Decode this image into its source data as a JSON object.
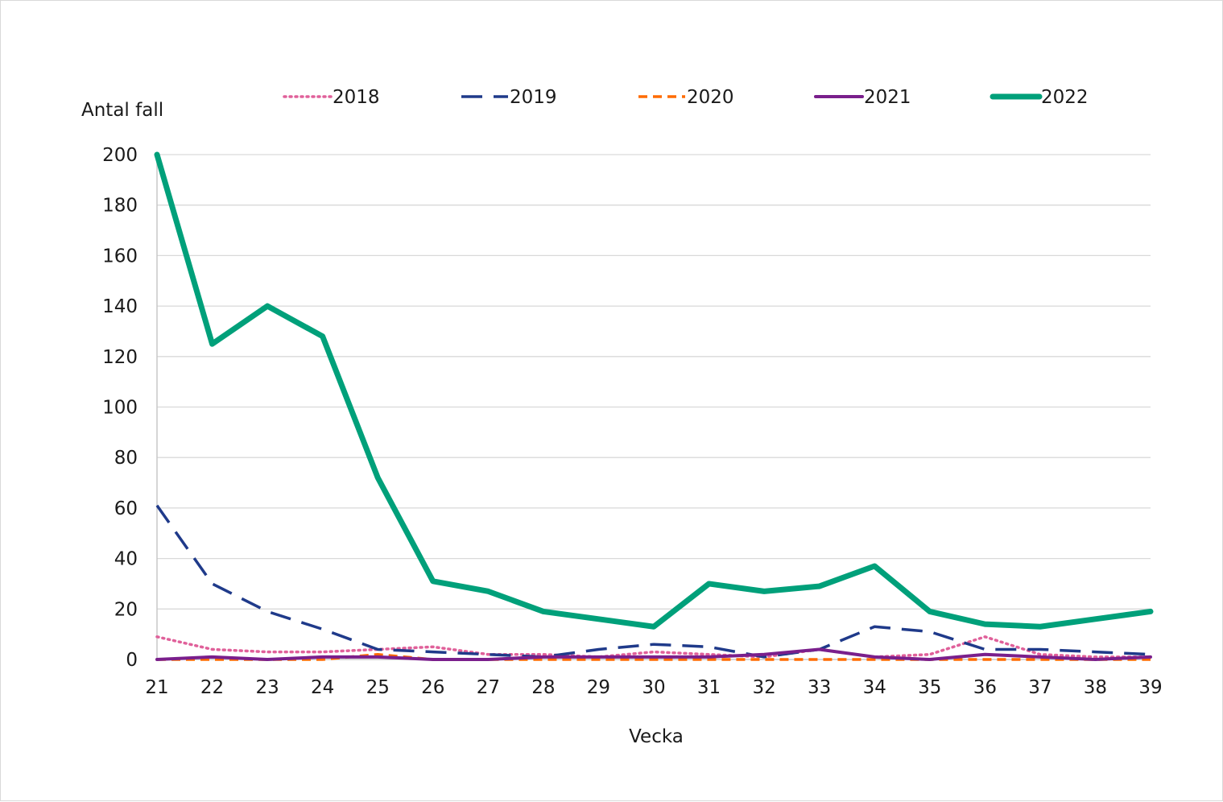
{
  "chart_data": {
    "type": "line",
    "title": "",
    "ylabel": "Antal fall",
    "xlabel": "Vecka",
    "ylim": [
      0,
      200
    ],
    "yticks": [
      0,
      20,
      40,
      60,
      80,
      100,
      120,
      140,
      160,
      180,
      200
    ],
    "grid": "horizontal",
    "legend_position": "top",
    "x": [
      21,
      22,
      23,
      24,
      25,
      26,
      27,
      28,
      29,
      30,
      31,
      32,
      33,
      34,
      35,
      36,
      37,
      38,
      39
    ],
    "series": [
      {
        "name": "2018",
        "color": "#e0609a",
        "style": "dotted",
        "values": [
          9,
          4,
          3,
          3,
          4,
          5,
          2,
          2,
          1,
          3,
          2,
          1,
          4,
          1,
          2,
          9,
          2,
          1,
          1
        ]
      },
      {
        "name": "2019",
        "color": "#1f3a8a",
        "style": "dashed-long",
        "values": [
          61,
          30,
          19,
          12,
          4,
          3,
          2,
          1,
          4,
          6,
          5,
          1,
          4,
          13,
          11,
          4,
          4,
          3,
          2
        ]
      },
      {
        "name": "2020",
        "color": "#ff6b00",
        "style": "dashed",
        "values": [
          0,
          0,
          0,
          0,
          2,
          0,
          0,
          0,
          0,
          0,
          0,
          0,
          0,
          0,
          0,
          0,
          0,
          0,
          0
        ]
      },
      {
        "name": "2021",
        "color": "#7a1f8c",
        "style": "solid",
        "values": [
          0,
          1,
          0,
          1,
          1,
          0,
          0,
          1,
          1,
          1,
          1,
          2,
          4,
          1,
          0,
          2,
          1,
          0,
          1
        ]
      },
      {
        "name": "2022",
        "color": "#00a07a",
        "style": "solid-thick",
        "values": [
          203,
          125,
          140,
          128,
          72,
          31,
          27,
          19,
          16,
          13,
          30,
          27,
          29,
          37,
          19,
          14,
          13,
          16,
          19
        ]
      }
    ]
  }
}
